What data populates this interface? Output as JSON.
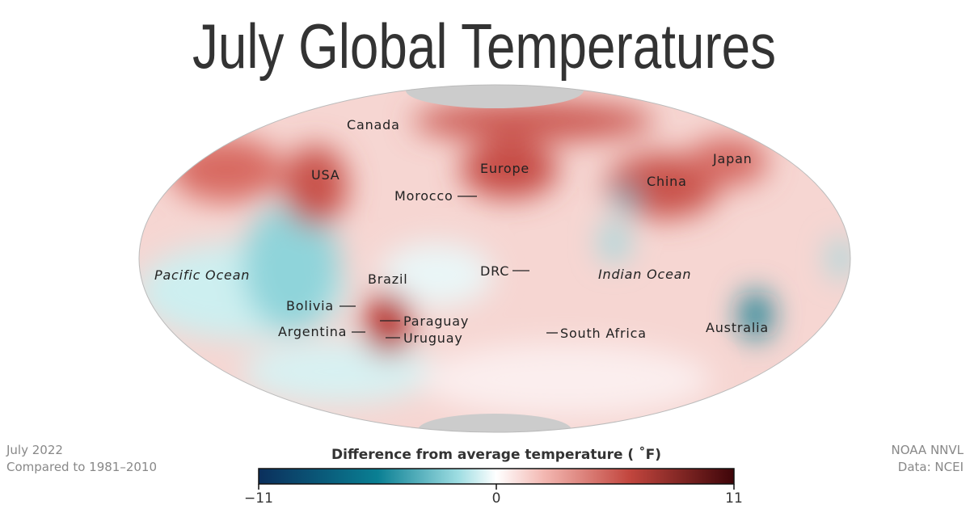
{
  "title": "July Global Temperatures",
  "map": {
    "labels": [
      "Canada",
      "USA",
      "Europe",
      "Morocco",
      "China",
      "Japan",
      "Pacific Ocean",
      "Brazil",
      "Bolivia",
      "Argentina",
      "Paraguay",
      "Uruguay",
      "DRC",
      "Indian Ocean",
      "South Africa",
      "Australia"
    ]
  },
  "footer": {
    "date": "July 2022",
    "baseline": "Compared to 1981–2010",
    "credit": "NOAA NNVL",
    "source": "Data: NCEI"
  },
  "legend": {
    "title": "Difference from average temperature ( ˚F)",
    "range": [
      -11,
      11
    ],
    "ticks": [
      {
        "value": -11,
        "label": "−11"
      },
      0,
      11
    ]
  }
}
